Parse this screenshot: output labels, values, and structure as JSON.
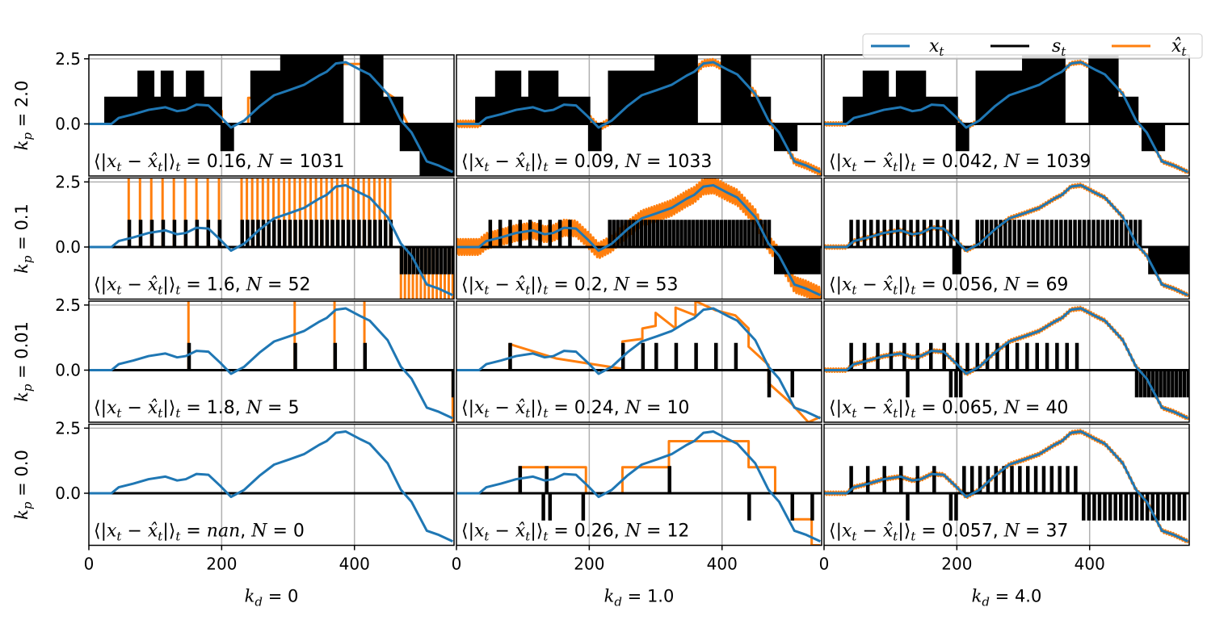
{
  "chart_data": {
    "type": "line",
    "title": "",
    "xlim": [
      0,
      550
    ],
    "ylim": [
      -2.0,
      2.65
    ],
    "xticks": [
      0,
      200,
      400
    ],
    "yticks": [
      "2.5",
      "0.0"
    ],
    "ytick_values": [
      2.5,
      0.0
    ],
    "grid": true,
    "legend": {
      "placement": "top-right",
      "entries": [
        {
          "name": "x_t",
          "label_main": "x",
          "label_sub": "t",
          "color": "#1f77b4"
        },
        {
          "name": "s_t",
          "label_main": "s",
          "label_sub": "t",
          "color": "#000000"
        },
        {
          "name": "xhat_t",
          "label_main": "x̂",
          "label_sub": "t",
          "color": "#ff7f0e"
        }
      ]
    },
    "col_labels": [
      {
        "main": "k",
        "sub": "d",
        "value": "0"
      },
      {
        "main": "k",
        "sub": "d",
        "value": "1.0"
      },
      {
        "main": "k",
        "sub": "d",
        "value": "4.0"
      }
    ],
    "row_labels": [
      {
        "main": "k",
        "sub": "p",
        "value": "2.0"
      },
      {
        "main": "k",
        "sub": "p",
        "value": "0.1"
      },
      {
        "main": "k",
        "sub": "p",
        "value": "0.01"
      },
      {
        "main": "k",
        "sub": "p",
        "value": "0.0"
      }
    ],
    "metric_label": "⟨|x_t − x̂_t|⟩_t",
    "x_t": [
      [
        0,
        0
      ],
      [
        34,
        0
      ],
      [
        45,
        0.23
      ],
      [
        67,
        0.37
      ],
      [
        90,
        0.54
      ],
      [
        115,
        0.64
      ],
      [
        133,
        0.49
      ],
      [
        146,
        0.54
      ],
      [
        162,
        0.74
      ],
      [
        180,
        0.71
      ],
      [
        198,
        0.28
      ],
      [
        214,
        -0.14
      ],
      [
        234,
        0.13
      ],
      [
        257,
        0.67
      ],
      [
        279,
        1.1
      ],
      [
        302,
        1.3
      ],
      [
        324,
        1.5
      ],
      [
        347,
        1.86
      ],
      [
        358,
        2.0
      ],
      [
        372,
        2.32
      ],
      [
        387,
        2.37
      ],
      [
        410,
        2.06
      ],
      [
        423,
        1.9
      ],
      [
        450,
        1.15
      ],
      [
        470,
        0.13
      ],
      [
        486,
        -0.33
      ],
      [
        509,
        -1.44
      ],
      [
        527,
        -1.6
      ],
      [
        548,
        -1.85
      ]
    ],
    "panels": [
      {
        "row": 0,
        "col": 0,
        "err": "0.16",
        "N": "1031",
        "spike_groups": [
          [
            25,
            200,
            4,
            1
          ],
          [
            75,
            95,
            2,
            2
          ],
          [
            110,
            125,
            2,
            2
          ],
          [
            148,
            170,
            2,
            2
          ],
          [
            200,
            215,
            3,
            -1
          ],
          [
            245,
            290,
            2,
            2
          ],
          [
            290,
            380,
            2,
            2.65
          ],
          [
            410,
            440,
            2,
            2.65
          ],
          [
            440,
            470,
            2,
            1
          ],
          [
            470,
            500,
            2,
            -1
          ],
          [
            500,
            548,
            3,
            -2
          ]
        ],
        "xhat": [
          [
            0,
            0
          ],
          [
            50,
            0
          ],
          [
            50,
            0.5
          ],
          [
            200,
            0.5
          ],
          [
            200,
            0
          ],
          [
            240,
            0
          ],
          [
            240,
            1
          ],
          [
            300,
            1
          ],
          [
            300,
            1.7
          ],
          [
            360,
            1.7
          ],
          [
            360,
            2.3
          ],
          [
            430,
            2.3
          ],
          [
            430,
            1.5
          ],
          [
            460,
            1
          ],
          [
            480,
            0
          ],
          [
            500,
            -1
          ],
          [
            520,
            -1.5
          ],
          [
            548,
            -1.9
          ]
        ]
      },
      {
        "row": 0,
        "col": 1,
        "err": "0.09",
        "N": "1033",
        "spike_groups": [
          [
            30,
            200,
            3,
            1
          ],
          [
            60,
            95,
            2,
            2
          ],
          [
            110,
            150,
            2,
            2
          ],
          [
            200,
            215,
            3,
            -1
          ],
          [
            230,
            300,
            2,
            2
          ],
          [
            300,
            360,
            2,
            2.65
          ],
          [
            400,
            440,
            2,
            2.65
          ],
          [
            440,
            470,
            2,
            1
          ],
          [
            480,
            510,
            2,
            -1
          ]
        ],
        "xhat_track": 0.12
      },
      {
        "row": 0,
        "col": 2,
        "err": "0.042",
        "N": "1039",
        "spike_groups": [
          [
            30,
            200,
            3,
            1
          ],
          [
            60,
            95,
            2,
            2
          ],
          [
            110,
            150,
            2,
            2
          ],
          [
            200,
            215,
            3,
            -1
          ],
          [
            230,
            300,
            2,
            2
          ],
          [
            300,
            360,
            2,
            2.65
          ],
          [
            400,
            440,
            2,
            2.65
          ],
          [
            440,
            470,
            2,
            1
          ],
          [
            480,
            510,
            2,
            -1
          ]
        ],
        "xhat_track": 0.06
      },
      {
        "row": 1,
        "col": 0,
        "err": "1.6",
        "N": "52",
        "spike_groups": [
          [
            60,
            200,
            17,
            1
          ],
          [
            230,
            460,
            8,
            1
          ],
          [
            470,
            548,
            6,
            -1
          ]
        ],
        "xhat_spikes": true
      },
      {
        "row": 1,
        "col": 1,
        "err": "0.2",
        "N": "53",
        "spike_groups": [
          [
            50,
            180,
            15,
            1
          ],
          [
            230,
            470,
            6,
            1
          ],
          [
            480,
            548,
            5,
            -1
          ]
        ],
        "xhat_track": 0.3
      },
      {
        "row": 1,
        "col": 2,
        "err": "0.056",
        "N": "69",
        "spike_groups": [
          [
            40,
            200,
            10,
            1
          ],
          [
            195,
            205,
            4,
            -1
          ],
          [
            230,
            480,
            7,
            1
          ],
          [
            490,
            548,
            4,
            -1
          ]
        ],
        "xhat_track": 0.06
      },
      {
        "row": 2,
        "col": 0,
        "err": "1.8",
        "N": "5",
        "spikes": [
          [
            150,
            1
          ],
          [
            310,
            1
          ],
          [
            370,
            1
          ],
          [
            415,
            1
          ],
          [
            548,
            -1
          ]
        ],
        "xhat_spikes": true
      },
      {
        "row": 2,
        "col": 1,
        "err": "0.24",
        "N": "10",
        "spikes": [
          [
            80,
            1
          ],
          [
            250,
            1
          ],
          [
            280,
            1
          ],
          [
            300,
            1
          ],
          [
            330,
            1
          ],
          [
            360,
            1
          ],
          [
            390,
            1
          ],
          [
            420,
            1
          ],
          [
            470,
            -1
          ],
          [
            505,
            -1
          ]
        ],
        "xhat": [
          [
            0,
            0
          ],
          [
            80,
            0
          ],
          [
            80,
            1
          ],
          [
            150,
            0.45
          ],
          [
            250,
            0.05
          ],
          [
            250,
            1.1
          ],
          [
            280,
            1.2
          ],
          [
            280,
            1.6
          ],
          [
            300,
            1.7
          ],
          [
            300,
            2.2
          ],
          [
            330,
            1.6
          ],
          [
            330,
            2.4
          ],
          [
            360,
            2.1
          ],
          [
            360,
            2.65
          ],
          [
            390,
            2.3
          ],
          [
            420,
            2.1
          ],
          [
            440,
            1.6
          ],
          [
            440,
            0.9
          ],
          [
            470,
            0.2
          ],
          [
            470,
            -0.5
          ],
          [
            505,
            -1.3
          ],
          [
            530,
            -2
          ],
          [
            548,
            -1.8
          ]
        ]
      },
      {
        "row": 2,
        "col": 2,
        "err": "0.065",
        "N": "40",
        "spike_groups": [
          [
            40,
            190,
            20,
            1
          ],
          [
            200,
            380,
            15,
            1
          ],
          [
            470,
            548,
            6,
            -1
          ]
        ],
        "spikes": [
          [
            125,
            -1
          ],
          [
            190,
            -1
          ],
          [
            198,
            -1
          ],
          [
            205,
            -1
          ]
        ],
        "xhat_track": 0.06
      },
      {
        "row": 3,
        "col": 0,
        "err": "nan",
        "N": "0",
        "err_italic": true
      },
      {
        "row": 3,
        "col": 1,
        "err": "0.26",
        "N": "12",
        "spikes": [
          [
            95,
            1
          ],
          [
            135,
            1
          ],
          [
            130,
            -1
          ],
          [
            140,
            -1
          ],
          [
            190,
            -1
          ],
          [
            320,
            1
          ],
          [
            440,
            -1
          ],
          [
            505,
            -1
          ],
          [
            535,
            -1
          ]
        ],
        "xhat": [
          [
            0,
            0
          ],
          [
            95,
            0
          ],
          [
            95,
            1
          ],
          [
            195,
            1
          ],
          [
            195,
            0
          ],
          [
            250,
            0
          ],
          [
            250,
            1
          ],
          [
            320,
            1
          ],
          [
            320,
            2
          ],
          [
            440,
            2
          ],
          [
            440,
            1
          ],
          [
            480,
            1
          ],
          [
            480,
            0
          ],
          [
            505,
            0
          ],
          [
            505,
            -1
          ],
          [
            535,
            -1
          ],
          [
            535,
            -2
          ],
          [
            548,
            -2
          ]
        ]
      },
      {
        "row": 3,
        "col": 2,
        "err": "0.057",
        "N": "37",
        "spike_groups": [
          [
            40,
            180,
            25,
            1
          ],
          [
            210,
            380,
            12,
            1
          ],
          [
            390,
            548,
            8,
            -1
          ]
        ],
        "spikes": [
          [
            125,
            -1
          ],
          [
            190,
            -1
          ],
          [
            198,
            -1
          ]
        ],
        "xhat_track": 0.06
      }
    ]
  }
}
